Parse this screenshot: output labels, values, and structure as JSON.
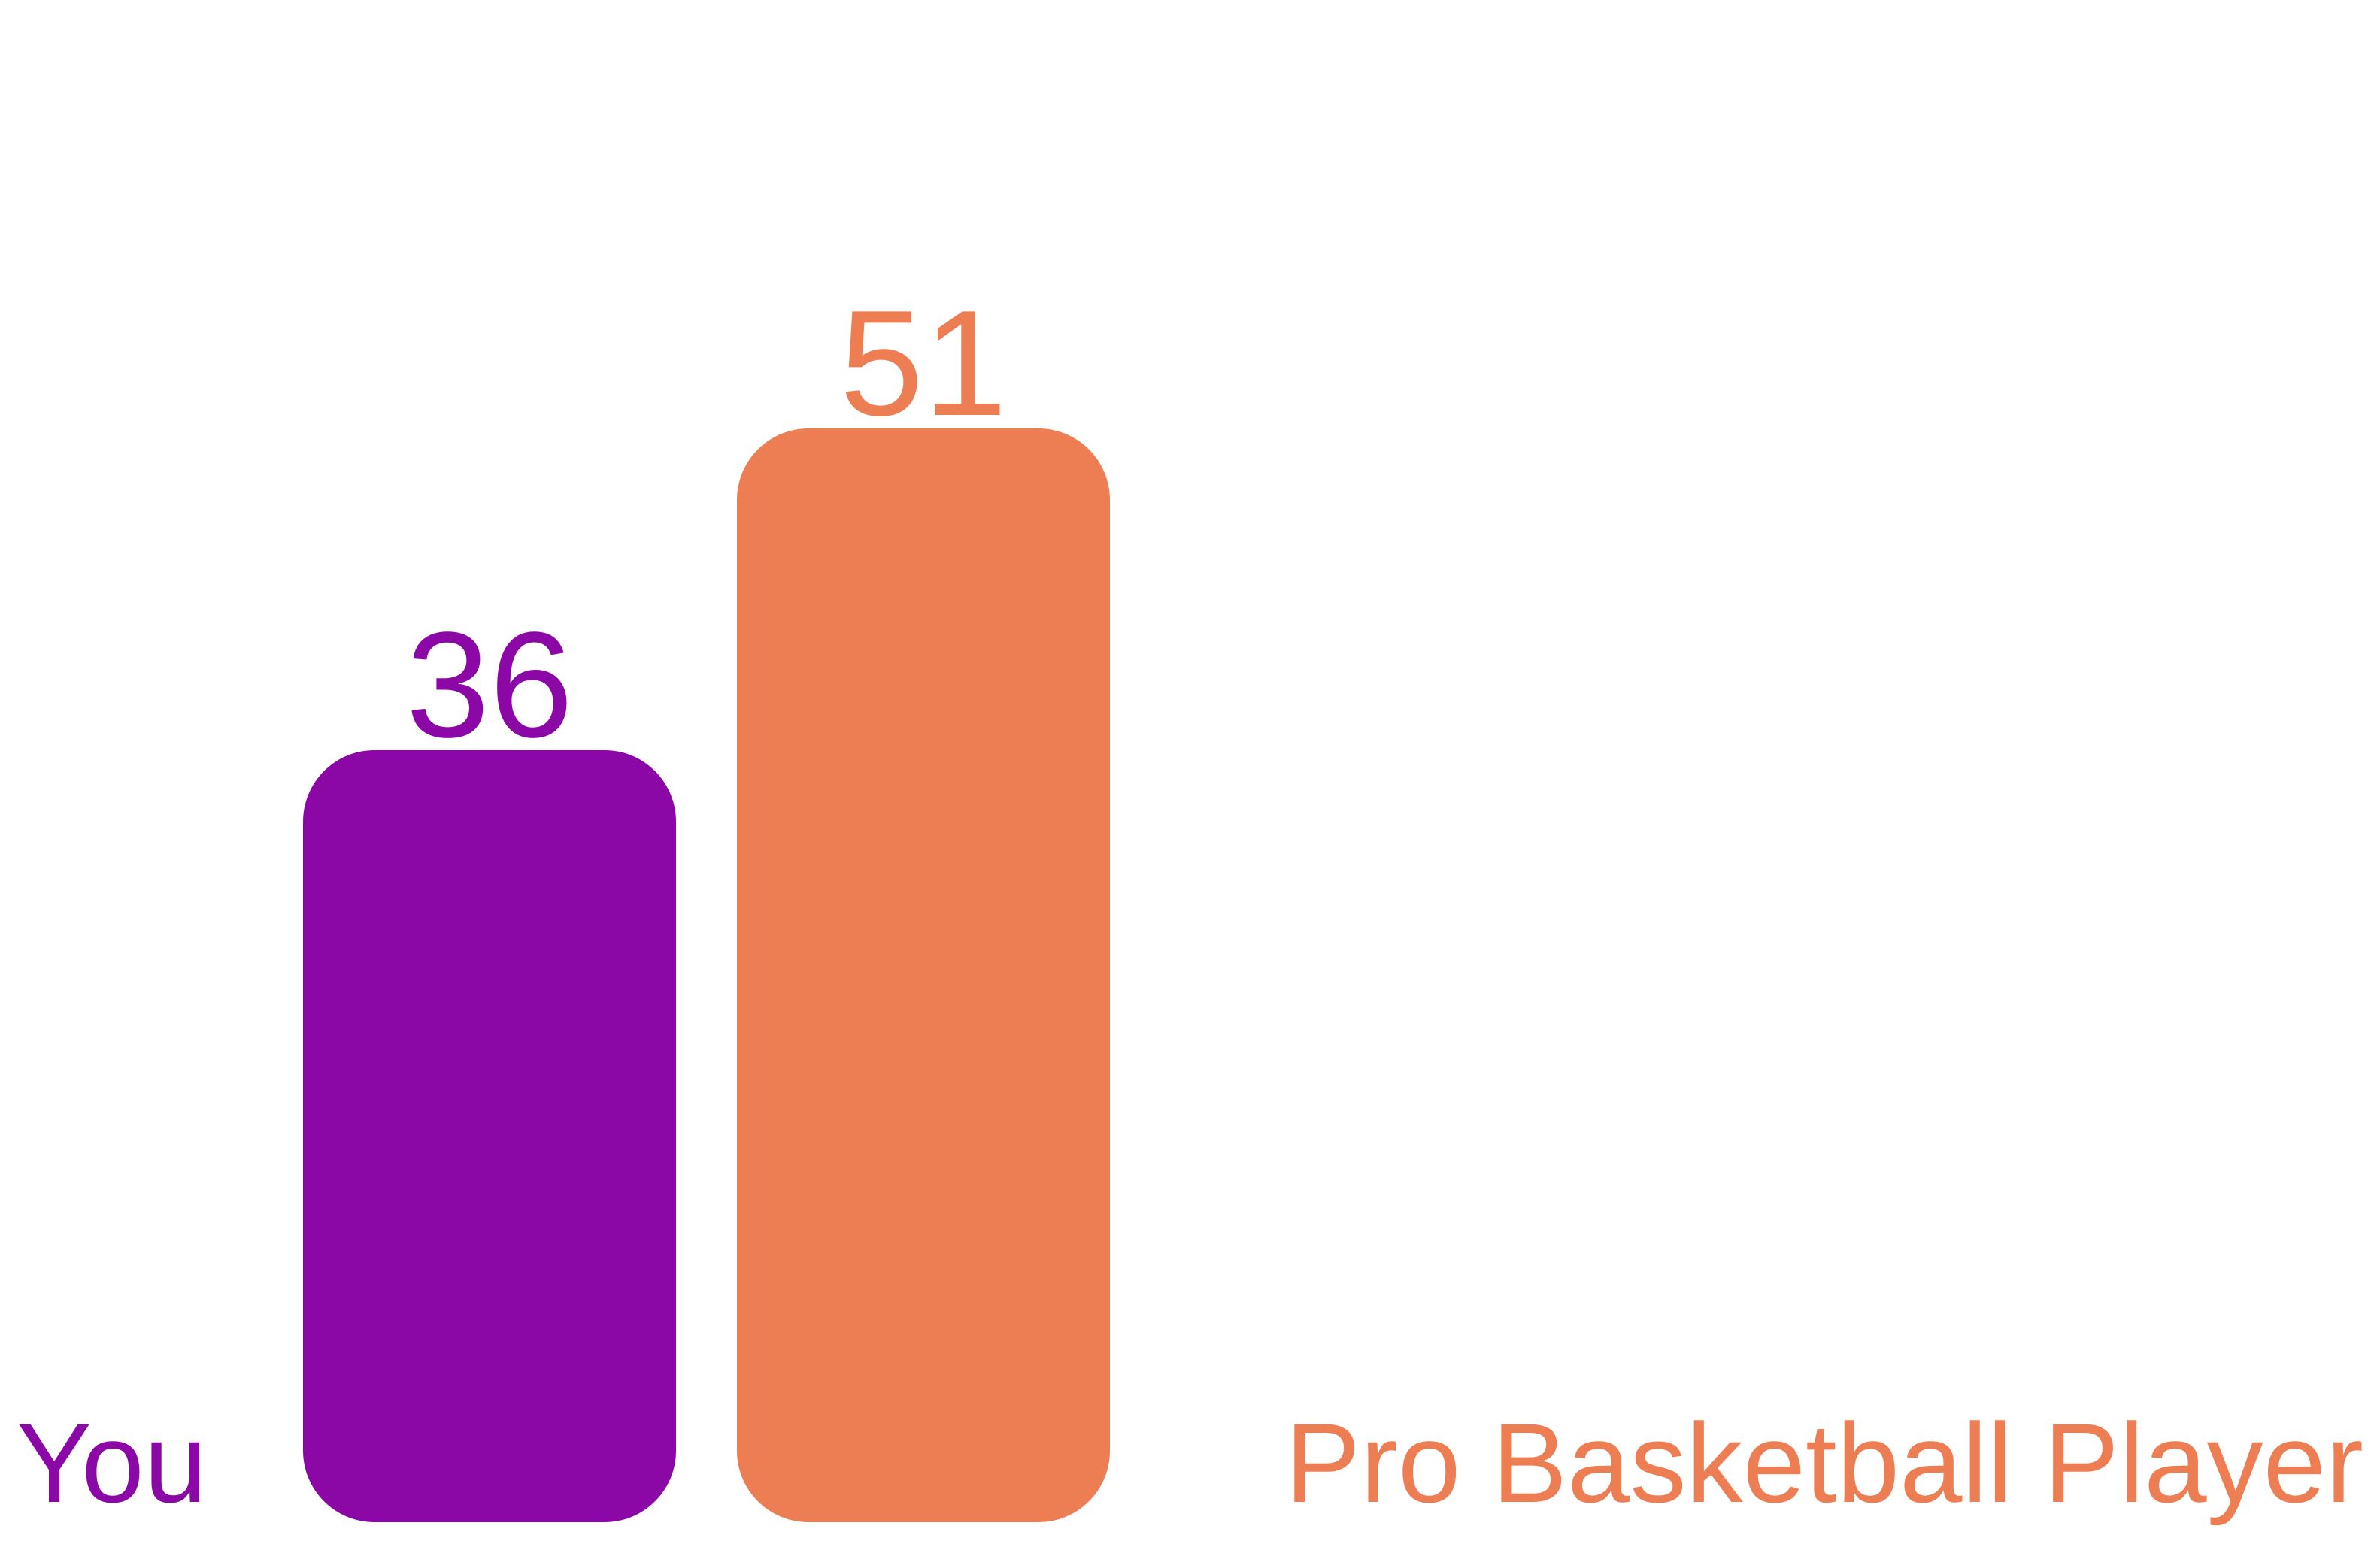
{
  "chart_data": {
    "type": "bar",
    "title": "",
    "xlabel": "",
    "ylabel": "",
    "categories": [
      "You",
      "Pro Basketball Player"
    ],
    "values": [
      36,
      51
    ],
    "colors": [
      "#8B08A6",
      "#ED7D53"
    ],
    "ylim": [
      0,
      51
    ],
    "grid": false,
    "legend": "bottom"
  }
}
